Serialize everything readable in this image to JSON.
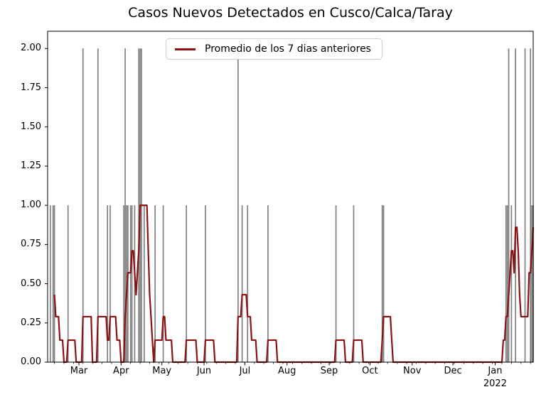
{
  "figure": {
    "title": "Casos Nuevos Detectados en Cusco/Calca/Taray",
    "background": "#ffffff",
    "frame_color": "#000000"
  },
  "legend": {
    "label": "Promedio de los 7 dias anteriores",
    "line_color": "#8b1212"
  },
  "chart_data": {
    "type": "bar",
    "title": "Casos Nuevos Detectados en Cusco/Calca/Taray",
    "xlabel": "",
    "ylabel": "",
    "x_axis": {
      "start_date": "2021-02-06",
      "end_date": "2022-01-29",
      "span_days": 357,
      "major_ticks": [
        {
          "day": 23,
          "label": "Mar"
        },
        {
          "day": 54,
          "label": "Apr"
        },
        {
          "day": 84,
          "label": "May"
        },
        {
          "day": 115,
          "label": "Jun"
        },
        {
          "day": 145,
          "label": "Jul"
        },
        {
          "day": 176,
          "label": "Aug"
        },
        {
          "day": 207,
          "label": "Sep"
        },
        {
          "day": 237,
          "label": "Oct"
        },
        {
          "day": 268,
          "label": "Nov"
        },
        {
          "day": 298,
          "label": "Dec"
        },
        {
          "day": 329,
          "label": "Jan"
        }
      ],
      "year_label": "2022",
      "year_label_day": 329,
      "minor_tick_first_day": 5,
      "minor_tick_every_days": 7
    },
    "y_axis": {
      "min": 0,
      "max": 2.11,
      "ticks": [
        {
          "v": 0.0,
          "label": "0.00"
        },
        {
          "v": 0.25,
          "label": "0.25"
        },
        {
          "v": 0.5,
          "label": "0.50"
        },
        {
          "v": 0.75,
          "label": "0.75"
        },
        {
          "v": 1.0,
          "label": "1.00"
        },
        {
          "v": 1.25,
          "label": "1.25"
        },
        {
          "v": 1.5,
          "label": "1.50"
        },
        {
          "v": 1.75,
          "label": "1.75"
        },
        {
          "v": 2.0,
          "label": "2.00"
        }
      ]
    },
    "bars": {
      "name": "Casos nuevos diarios",
      "color": "#808080",
      "points": [
        {
          "day": 2,
          "date": "2021-02-08",
          "cases": 1
        },
        {
          "day": 4,
          "date": "2021-02-10",
          "cases": 1
        },
        {
          "day": 5,
          "date": "2021-02-11",
          "cases": 1
        },
        {
          "day": 15,
          "date": "2021-02-21",
          "cases": 1
        },
        {
          "day": 26,
          "date": "2021-03-04",
          "cases": 2
        },
        {
          "day": 37,
          "date": "2021-03-15",
          "cases": 2
        },
        {
          "day": 44,
          "date": "2021-03-22",
          "cases": 1
        },
        {
          "day": 46,
          "date": "2021-03-24",
          "cases": 1
        },
        {
          "day": 56,
          "date": "2021-04-03",
          "cases": 1
        },
        {
          "day": 57,
          "date": "2021-04-04",
          "cases": 2
        },
        {
          "day": 58,
          "date": "2021-04-05",
          "cases": 1
        },
        {
          "day": 59,
          "date": "2021-04-06",
          "cases": 1
        },
        {
          "day": 61,
          "date": "2021-04-08",
          "cases": 1
        },
        {
          "day": 62,
          "date": "2021-04-09",
          "cases": 1
        },
        {
          "day": 64,
          "date": "2021-04-11",
          "cases": 1
        },
        {
          "day": 67,
          "date": "2021-04-14",
          "cases": 2
        },
        {
          "day": 68,
          "date": "2021-04-15",
          "cases": 2
        },
        {
          "day": 69,
          "date": "2021-04-16",
          "cases": 2
        },
        {
          "day": 71,
          "date": "2021-04-18",
          "cases": 1
        },
        {
          "day": 79,
          "date": "2021-04-26",
          "cases": 1
        },
        {
          "day": 85,
          "date": "2021-05-02",
          "cases": 1
        },
        {
          "day": 102,
          "date": "2021-05-19",
          "cases": 1
        },
        {
          "day": 116,
          "date": "2021-06-02",
          "cases": 1
        },
        {
          "day": 140,
          "date": "2021-06-26",
          "cases": 2
        },
        {
          "day": 143,
          "date": "2021-06-29",
          "cases": 1
        },
        {
          "day": 147,
          "date": "2021-07-03",
          "cases": 1
        },
        {
          "day": 162,
          "date": "2021-07-18",
          "cases": 1
        },
        {
          "day": 212,
          "date": "2021-09-06",
          "cases": 1
        },
        {
          "day": 225,
          "date": "2021-09-19",
          "cases": 1
        },
        {
          "day": 246,
          "date": "2021-10-10",
          "cases": 1
        },
        {
          "day": 247,
          "date": "2021-10-11",
          "cases": 1
        },
        {
          "day": 337,
          "date": "2022-01-09",
          "cases": 1
        },
        {
          "day": 338,
          "date": "2022-01-10",
          "cases": 1
        },
        {
          "day": 339,
          "date": "2022-01-11",
          "cases": 2
        },
        {
          "day": 341,
          "date": "2022-01-13",
          "cases": 1
        },
        {
          "day": 344,
          "date": "2022-01-16",
          "cases": 2
        },
        {
          "day": 351,
          "date": "2022-01-23",
          "cases": 2
        },
        {
          "day": 355,
          "date": "2022-01-27",
          "cases": 2
        },
        {
          "day": 356,
          "date": "2022-01-28",
          "cases": 1
        },
        {
          "day": 357,
          "date": "2022-01-29",
          "cases": 1
        }
      ]
    },
    "line": {
      "name": "Promedio de los 7 dias anteriores",
      "color": "#8b1212",
      "steps": [
        [
          5,
          0.43
        ],
        [
          6,
          0.29
        ],
        [
          9,
          0.14
        ],
        [
          12,
          0
        ],
        [
          15,
          0.14
        ],
        [
          21,
          0
        ],
        [
          26,
          0.29
        ],
        [
          33,
          0
        ],
        [
          37,
          0.29
        ],
        [
          44,
          0.14
        ],
        [
          46,
          0.29
        ],
        [
          51,
          0.14
        ],
        [
          54,
          0
        ],
        [
          57,
          0.29
        ],
        [
          58,
          0.43
        ],
        [
          59,
          0.57
        ],
        [
          62,
          0.71
        ],
        [
          64,
          0.57
        ],
        [
          65,
          0.43
        ],
        [
          66,
          0.57
        ],
        [
          67,
          0.71
        ],
        [
          68,
          1.0
        ],
        [
          74,
          0.71
        ],
        [
          75,
          0.43
        ],
        [
          76,
          0.29
        ],
        [
          77,
          0.14
        ],
        [
          78,
          0
        ],
        [
          79,
          0.14
        ],
        [
          85,
          0.29
        ],
        [
          87,
          0.14
        ],
        [
          92,
          0
        ],
        [
          102,
          0.14
        ],
        [
          110,
          0
        ],
        [
          116,
          0.14
        ],
        [
          123,
          0
        ],
        [
          140,
          0.29
        ],
        [
          143,
          0.43
        ],
        [
          147,
          0.29
        ],
        [
          150,
          0.14
        ],
        [
          154,
          0
        ],
        [
          162,
          0.14
        ],
        [
          169,
          0
        ],
        [
          212,
          0.14
        ],
        [
          219,
          0
        ],
        [
          225,
          0.14
        ],
        [
          232,
          0
        ],
        [
          246,
          0.14
        ],
        [
          247,
          0.29
        ],
        [
          253,
          0.14
        ],
        [
          254,
          0
        ],
        [
          335,
          0.14
        ],
        [
          337,
          0.29
        ],
        [
          339,
          0.43
        ],
        [
          340,
          0.57
        ],
        [
          341,
          0.71
        ],
        [
          343,
          0.57
        ],
        [
          344,
          0.86
        ],
        [
          346,
          0.71
        ],
        [
          347,
          0.43
        ],
        [
          348,
          0.29
        ],
        [
          354,
          0.57
        ],
        [
          356,
          0.71
        ],
        [
          357,
          0.86
        ]
      ]
    }
  }
}
